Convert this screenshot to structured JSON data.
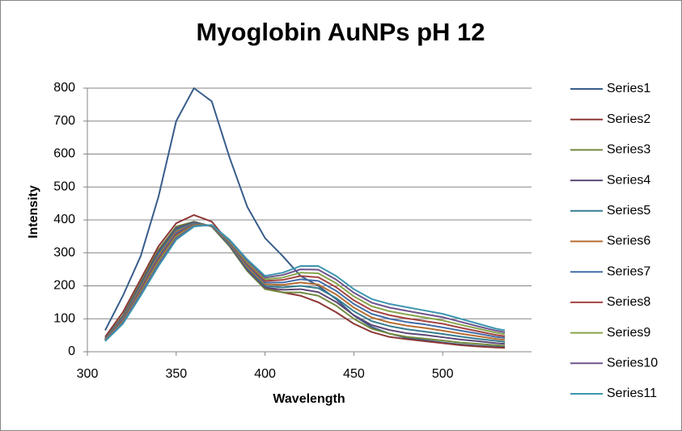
{
  "chart_data": {
    "type": "line",
    "title": "Myoglobin AuNPs pH 12",
    "x_label": "Wavelength",
    "y_label": "Intensity",
    "x": [
      310,
      320,
      330,
      340,
      350,
      360,
      370,
      380,
      390,
      400,
      410,
      420,
      430,
      440,
      450,
      460,
      470,
      480,
      490,
      500,
      510,
      520,
      530,
      535
    ],
    "xlim": [
      300,
      550
    ],
    "xticks": [
      300,
      350,
      400,
      450,
      500
    ],
    "ylim": [
      0,
      800
    ],
    "yticks": [
      0,
      100,
      200,
      300,
      400,
      500,
      600,
      700,
      800
    ],
    "grid": true,
    "legend": "right",
    "series": [
      {
        "name": "Series1",
        "color": "#385d8a",
        "values": [
          65,
          170,
          290,
          470,
          700,
          800,
          760,
          590,
          440,
          345,
          290,
          230,
          200,
          160,
          110,
          75,
          55,
          42,
          35,
          28,
          22,
          18,
          15,
          14
        ]
      },
      {
        "name": "Series2",
        "color": "#8c3836",
        "values": [
          45,
          120,
          220,
          320,
          390,
          415,
          395,
          330,
          250,
          195,
          180,
          170,
          150,
          120,
          85,
          60,
          45,
          38,
          32,
          26,
          20,
          16,
          13,
          12
        ]
      },
      {
        "name": "Series3",
        "color": "#71893f",
        "values": [
          40,
          110,
          210,
          310,
          380,
          395,
          380,
          320,
          245,
          190,
          180,
          180,
          170,
          140,
          100,
          70,
          55,
          45,
          40,
          34,
          28,
          24,
          20,
          18
        ]
      },
      {
        "name": "Series4",
        "color": "#5c4776",
        "values": [
          39,
          107,
          205,
          304,
          375,
          393,
          381,
          323,
          249,
          195,
          188,
          190,
          181,
          151,
          111,
          81,
          66,
          56,
          51,
          44,
          37,
          32,
          26,
          24
        ]
      },
      {
        "name": "Series5",
        "color": "#357d91",
        "values": [
          38,
          104,
          200,
          298,
          370,
          391,
          381,
          325,
          254,
          200,
          195,
          200,
          193,
          163,
          123,
          93,
          78,
          68,
          61,
          54,
          46,
          39,
          33,
          30
        ]
      },
      {
        "name": "Series6",
        "color": "#b66d31",
        "values": [
          37,
          101,
          195,
          291,
          365,
          389,
          382,
          328,
          258,
          205,
          203,
          210,
          204,
          174,
          134,
          104,
          89,
          79,
          72,
          64,
          55,
          47,
          39,
          36
        ]
      },
      {
        "name": "Series7",
        "color": "#426da9",
        "values": [
          36,
          98,
          190,
          285,
          360,
          388,
          383,
          330,
          263,
          210,
          210,
          220,
          215,
          185,
          145,
          115,
          100,
          90,
          83,
          74,
          64,
          55,
          45,
          42
        ]
      },
      {
        "name": "Series8",
        "color": "#a44340",
        "values": [
          35,
          94,
          185,
          279,
          355,
          386,
          383,
          333,
          267,
          215,
          218,
          230,
          226,
          196,
          156,
          126,
          111,
          101,
          93,
          85,
          73,
          62,
          51,
          47
        ]
      },
      {
        "name": "Series9",
        "color": "#86a44a",
        "values": [
          34,
          91,
          180,
          273,
          350,
          384,
          384,
          335,
          271,
          220,
          225,
          240,
          238,
          208,
          168,
          138,
          123,
          113,
          104,
          95,
          82,
          70,
          58,
          53
        ]
      },
      {
        "name": "Series10",
        "color": "#6e548d",
        "values": [
          33,
          88,
          175,
          266,
          345,
          382,
          384,
          338,
          276,
          225,
          233,
          250,
          249,
          219,
          179,
          149,
          134,
          124,
          114,
          105,
          91,
          77,
          64,
          59
        ]
      },
      {
        "name": "Series11",
        "color": "#3d96ae",
        "values": [
          32,
          85,
          170,
          260,
          340,
          380,
          385,
          340,
          280,
          230,
          240,
          260,
          260,
          230,
          190,
          160,
          145,
          135,
          125,
          115,
          100,
          85,
          70,
          65
        ]
      }
    ]
  }
}
